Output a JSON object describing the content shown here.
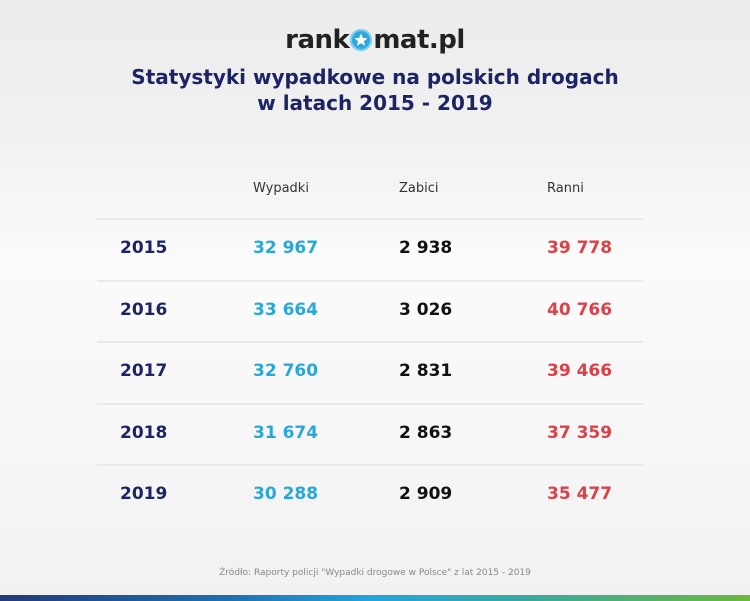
{
  "logo": {
    "text_before": "rank",
    "text_after": "mat.pl",
    "icon": "star-icon"
  },
  "title": {
    "line1": "Statystyki wypadkowe na polskich drogach",
    "line2": "w latach 2015 - 2019"
  },
  "table": {
    "headers": {
      "year": "",
      "wypadki": "Wypadki",
      "zabici": "Zabici",
      "ranni": "Ranni"
    },
    "rows": [
      {
        "year": "2015",
        "wypadki": "32 967",
        "zabici": "2 938",
        "ranni": "39 778"
      },
      {
        "year": "2016",
        "wypadki": "33 664",
        "zabici": "3 026",
        "ranni": "40 766"
      },
      {
        "year": "2017",
        "wypadki": "32 760",
        "zabici": "2 831",
        "ranni": "39 466"
      },
      {
        "year": "2018",
        "wypadki": "31 674",
        "zabici": "2 863",
        "ranni": "37 359"
      },
      {
        "year": "2019",
        "wypadki": "30 288",
        "zabici": "2 909",
        "ranni": "35 477"
      }
    ]
  },
  "source": "Źródło: Raporty policji \"Wypadki drogowe w Polsce\" z lat 2015 - 2019",
  "colors": {
    "title": "#1c2465",
    "wypadki": "#29a8d8",
    "zabici": "#111111",
    "ranni": "#dc4148"
  }
}
